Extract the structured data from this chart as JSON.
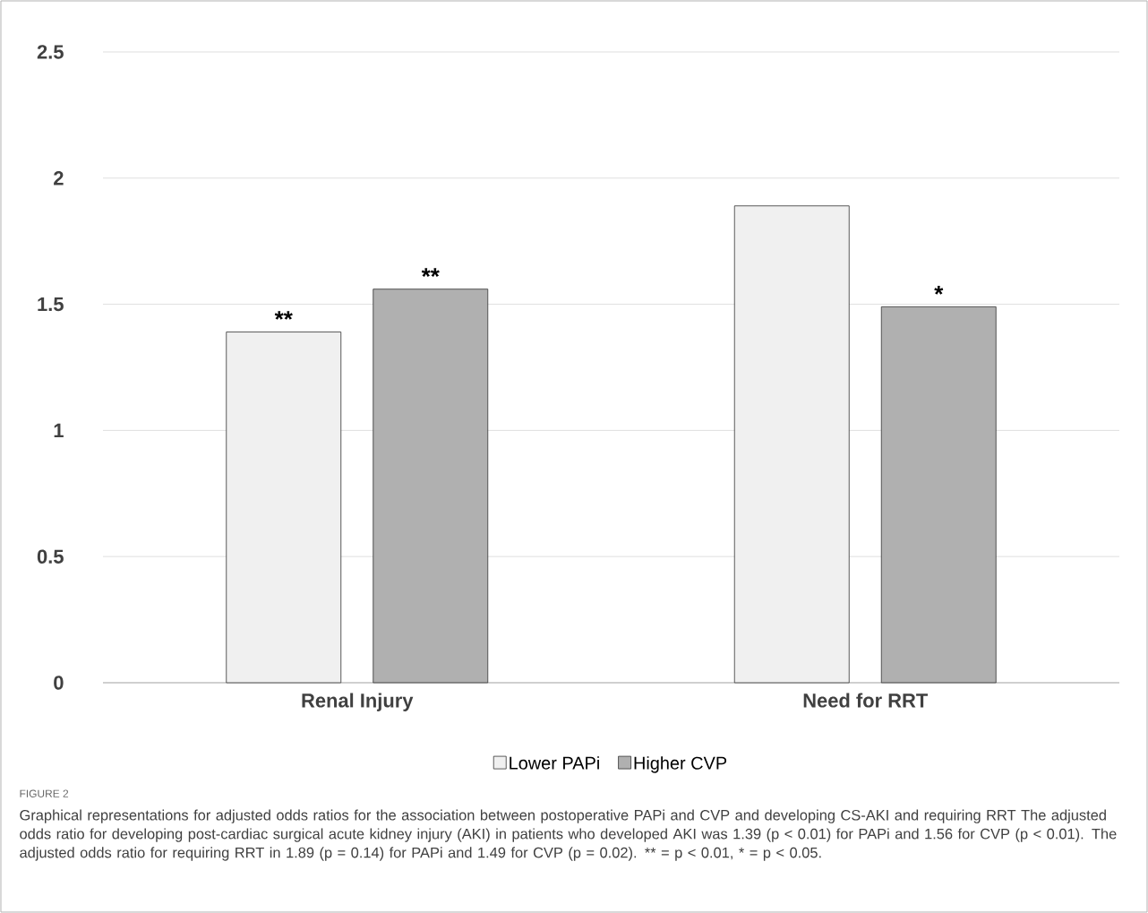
{
  "chart_data": {
    "type": "bar",
    "categories": [
      "Renal Injury",
      "Need for RRT"
    ],
    "series": [
      {
        "name": "Lower PAPi",
        "color": "#f0f0f0",
        "values": [
          1.39,
          1.89
        ],
        "value_labels": [
          "**",
          null
        ]
      },
      {
        "name": "Higher CVP",
        "color": "#b0b0b0",
        "values": [
          1.56,
          1.49
        ],
        "value_labels": [
          "**",
          "*"
        ]
      }
    ],
    "ylim": [
      0,
      2.5
    ],
    "yticks": [
      0,
      0.5,
      1,
      1.5,
      2,
      2.5
    ],
    "grid": "y",
    "legend": "bottom",
    "annotations": [
      "FIGURE 2",
      "Graphical representations for adjusted odds ratios for the association between postoperative PAPi and CVP and developing CS-AKI and requiring RRT The adjusted odds ratio for developing post-cardiac surgical acute kidney injury (AKI) in patients who developed AKI was 1.39 (p < 0.01) for PAPi and 1.56 for CVP (p < 0.01). The adjusted odds ratio for requiring RRT in 1.89 (p = 0.14) for PAPi and 1.49 for CVP (p = 0.02). ** = p < 0.01, * = p < 0.05."
    ]
  }
}
